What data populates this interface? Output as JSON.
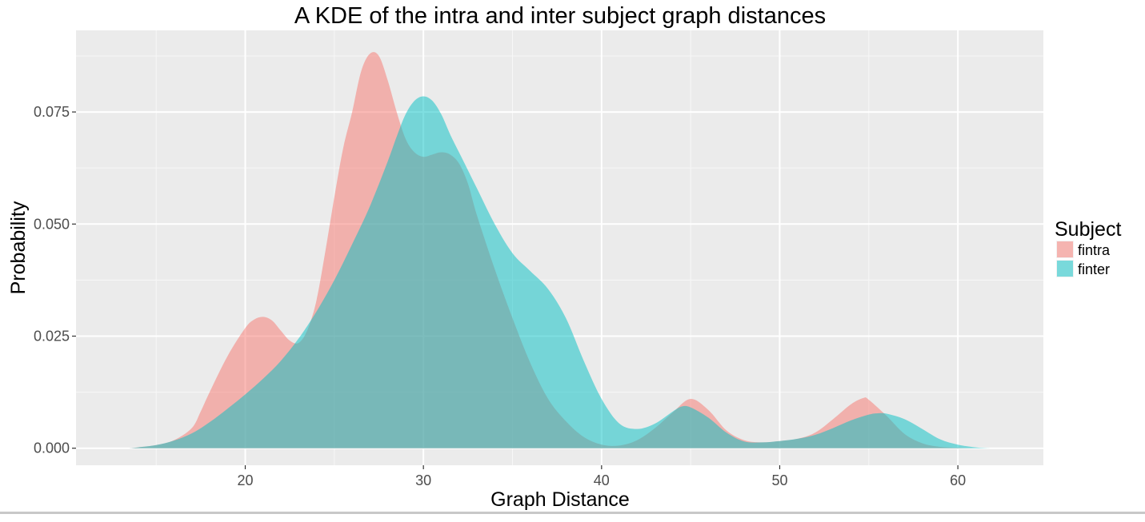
{
  "chart_data": {
    "type": "area",
    "title": "A KDE of the intra and inter subject graph distances",
    "xlabel": "Graph Distance",
    "ylabel": "Probability",
    "xlim": [
      10.5,
      64.8
    ],
    "ylim": [
      -0.0038,
      0.0932
    ],
    "x_ticks": [
      20,
      30,
      40,
      50,
      60
    ],
    "x_tick_labels": [
      "20",
      "30",
      "40",
      "50",
      "60"
    ],
    "y_ticks": [
      0.0,
      0.025,
      0.05,
      0.075
    ],
    "y_tick_labels": [
      "0.000",
      "0.025",
      "0.050",
      "0.075"
    ],
    "grid": true,
    "legend": {
      "title": "Subject",
      "position": "right"
    },
    "series": [
      {
        "name": "fintra",
        "color": "#F8766D",
        "opacity": 0.5,
        "x": [
          13.5,
          14,
          15,
          16,
          17,
          17.5,
          18,
          19,
          20,
          20.5,
          21,
          21.5,
          22,
          22.5,
          23,
          23.5,
          24,
          24.5,
          25,
          25.5,
          26,
          26.5,
          27,
          27.5,
          28,
          28.5,
          29,
          29.5,
          30,
          30.5,
          31,
          31.5,
          32,
          32.5,
          33,
          34,
          35,
          36,
          37,
          38,
          39,
          40,
          41,
          42,
          43,
          44,
          45,
          46,
          47,
          48,
          49,
          50,
          51,
          52,
          53,
          54,
          54.7,
          55,
          56,
          57,
          58,
          59,
          60,
          61,
          61.8
        ],
        "values": [
          0.0,
          0.0002,
          0.0007,
          0.0018,
          0.0045,
          0.0082,
          0.0125,
          0.0205,
          0.0268,
          0.0287,
          0.0293,
          0.0285,
          0.0262,
          0.024,
          0.0235,
          0.0265,
          0.033,
          0.044,
          0.056,
          0.067,
          0.075,
          0.084,
          0.088,
          0.0875,
          0.082,
          0.075,
          0.069,
          0.066,
          0.065,
          0.0655,
          0.066,
          0.0655,
          0.0635,
          0.059,
          0.052,
          0.04,
          0.029,
          0.019,
          0.011,
          0.006,
          0.0025,
          0.0008,
          0.0006,
          0.0018,
          0.0045,
          0.008,
          0.011,
          0.0085,
          0.004,
          0.0018,
          0.0013,
          0.0016,
          0.0021,
          0.0035,
          0.0065,
          0.0098,
          0.0112,
          0.0108,
          0.0072,
          0.0032,
          0.0011,
          0.0003,
          0.0001,
          0.0,
          0.0
        ]
      },
      {
        "name": "finter",
        "color": "#00BFC4",
        "opacity": 0.5,
        "x": [
          13.5,
          14,
          15,
          16,
          17,
          18,
          19,
          20,
          21,
          22,
          23,
          24,
          25,
          26,
          27,
          28,
          28.5,
          29,
          29.5,
          30,
          30.5,
          31,
          31.5,
          32,
          33,
          34,
          35,
          36,
          37,
          38,
          39,
          40,
          41,
          42,
          43,
          44,
          44.5,
          45,
          46,
          47,
          48,
          49,
          50,
          51,
          52,
          53,
          54,
          55,
          55.5,
          56,
          57,
          58,
          59,
          60,
          61,
          61.8
        ],
        "values": [
          0.0,
          0.0002,
          0.0007,
          0.0017,
          0.0033,
          0.0058,
          0.0088,
          0.012,
          0.0155,
          0.0195,
          0.0245,
          0.0305,
          0.0375,
          0.0455,
          0.054,
          0.064,
          0.0695,
          0.0745,
          0.0775,
          0.0785,
          0.0775,
          0.0745,
          0.07,
          0.066,
          0.058,
          0.05,
          0.0435,
          0.0395,
          0.0355,
          0.029,
          0.0195,
          0.011,
          0.0055,
          0.0043,
          0.0055,
          0.0082,
          0.0093,
          0.0091,
          0.0068,
          0.0035,
          0.0015,
          0.0013,
          0.0016,
          0.0021,
          0.003,
          0.0045,
          0.0062,
          0.0075,
          0.0078,
          0.0077,
          0.0065,
          0.0043,
          0.002,
          0.0008,
          0.0002,
          0.0
        ]
      }
    ]
  }
}
